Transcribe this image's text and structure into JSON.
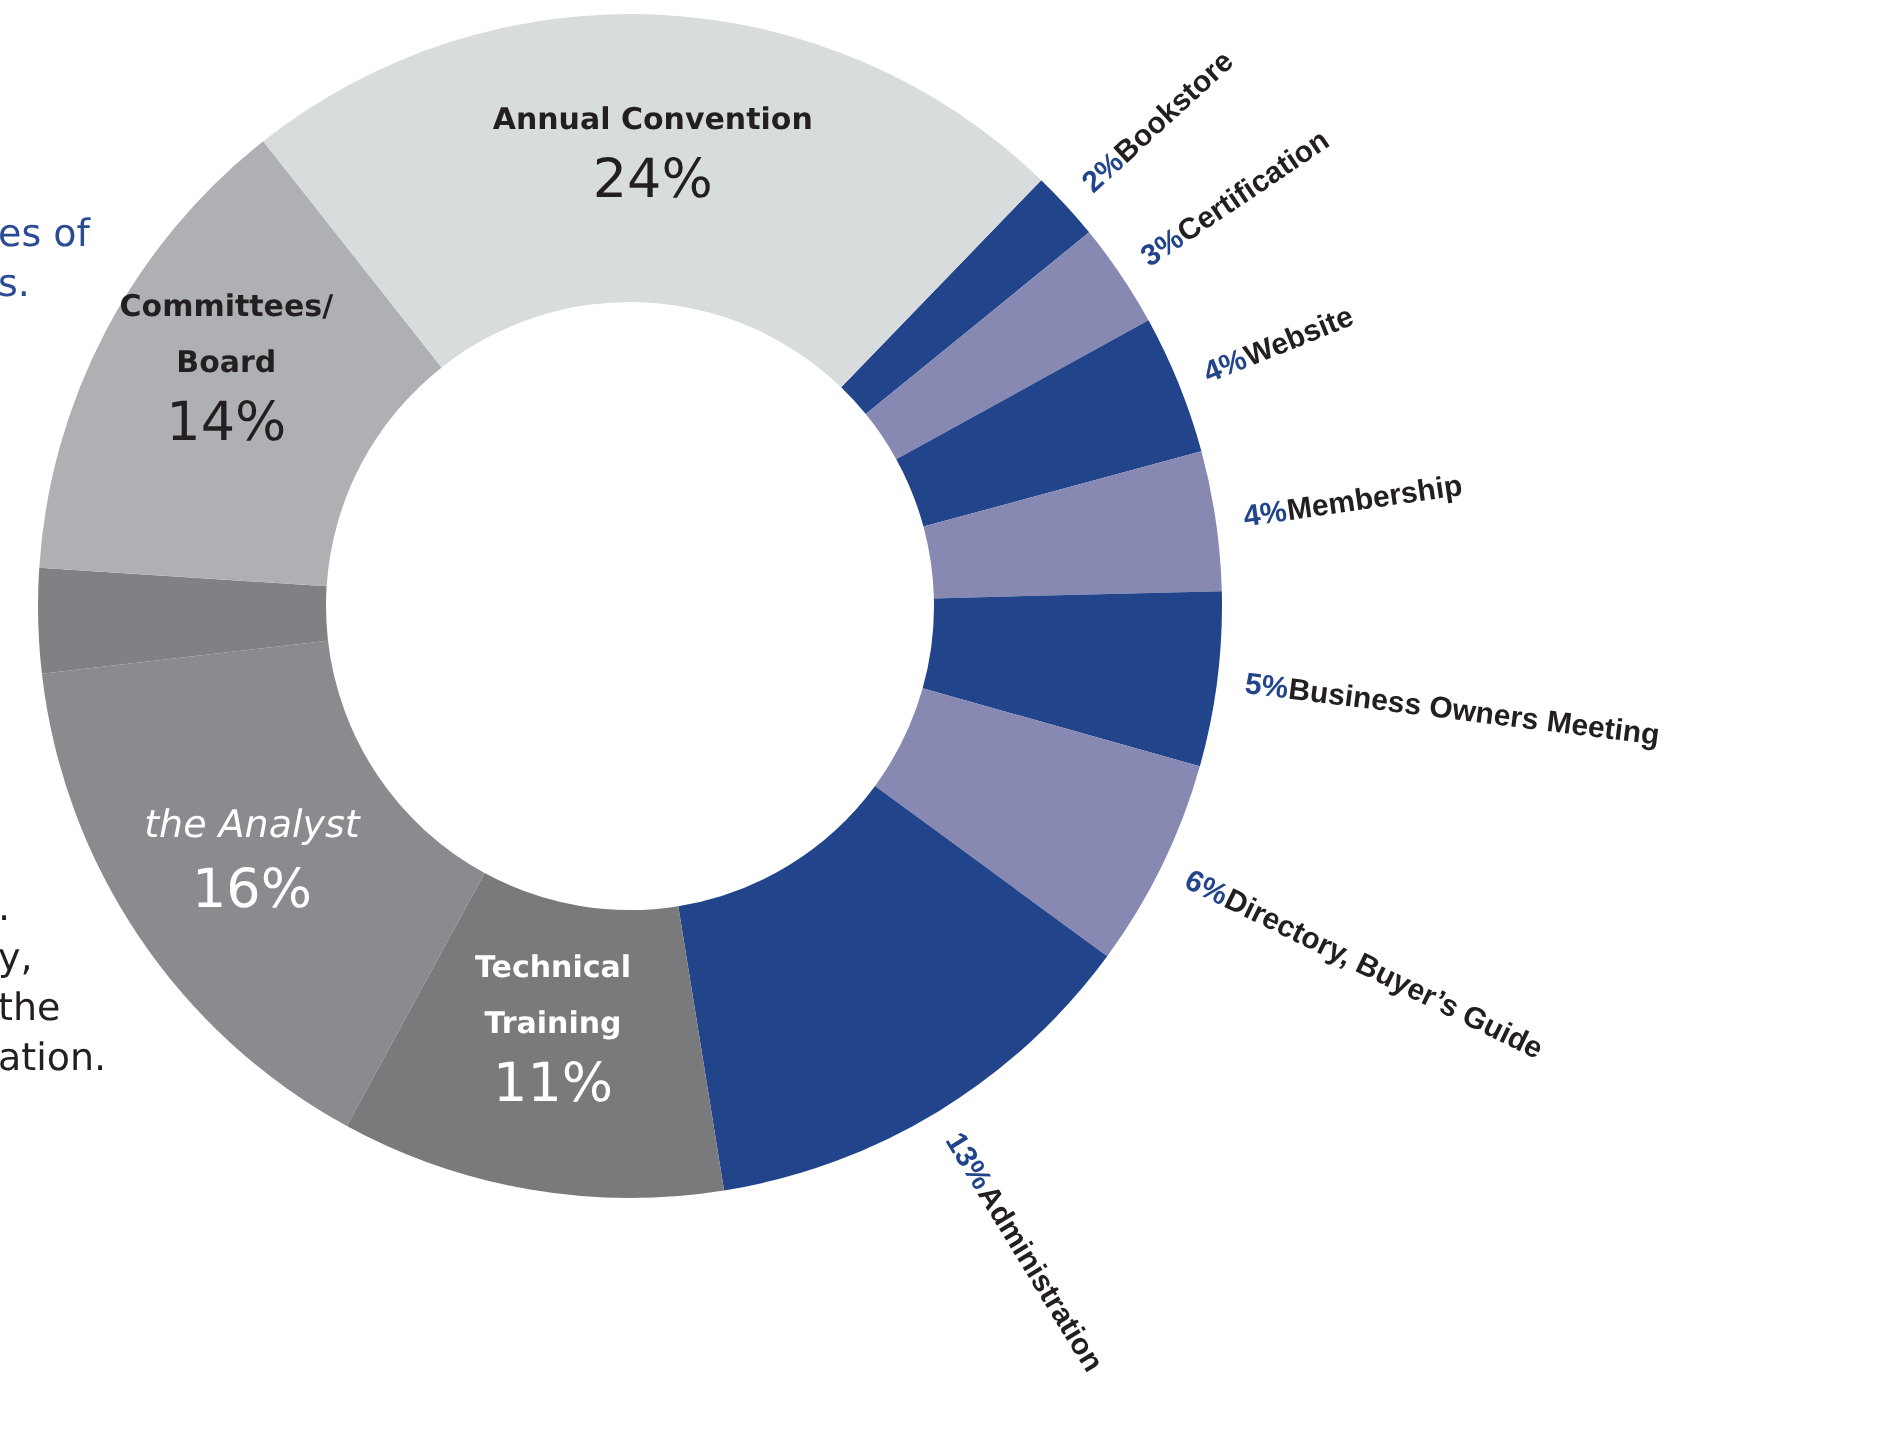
{
  "chart_data": {
    "type": "donut",
    "categories": [
      "Bookstore",
      "Certification",
      "Website",
      "Membership",
      "Business Owners Meeting",
      "Directory, Buyer’s Guide",
      "Administration",
      "Technical\nTraining",
      "the Analyst",
      null,
      "Committees/\nBoard",
      "Annual Convention"
    ],
    "values": [
      2,
      3,
      4,
      4,
      5,
      6,
      13,
      11,
      16,
      3,
      14,
      24
    ],
    "value_labels": [
      "2%",
      "3%",
      "4%",
      "4%",
      "5%",
      "6%",
      "13%",
      "11%",
      "16%",
      null,
      "14%",
      "24%"
    ],
    "colors": [
      "#21448a",
      "#8789b3",
      "#21448a",
      "#8789b3",
      "#21448a",
      "#8789b3",
      "#21448a",
      "#7a7a7c",
      "#8a8b8e",
      "#808184",
      "#aeb0b3",
      "#d9dcdd"
    ],
    "annotations": [
      "es of\ns.",
      ".\ny,\nthe\nation."
    ]
  }
}
